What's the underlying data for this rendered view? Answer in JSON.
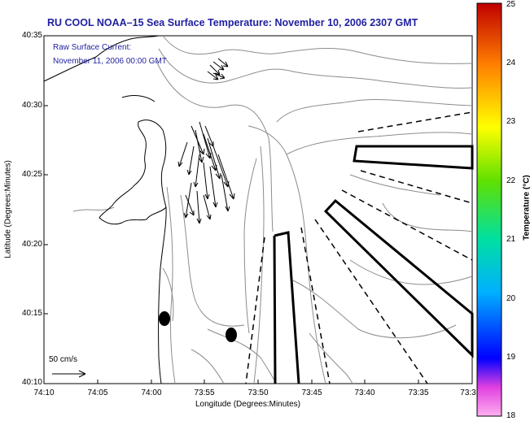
{
  "title": "RU COOL  NOAA–15  Sea Surface Temperature:  November 10, 2006 2307 GMT",
  "legend": {
    "line1": "Raw Surface Current:",
    "line2": "November 11, 2006 00:00 GMT",
    "scale_label": "50 cm/s"
  },
  "axes": {
    "xlabel": "Longitude (Degrees:Minutes)",
    "ylabel": "Latitude (Degrees:Minutes)",
    "xticks": [
      "74:10",
      "74:05",
      "74:00",
      "73:55",
      "73:50",
      "73:45",
      "73:40",
      "73:35",
      "73:3"
    ],
    "yticks": [
      "40:35",
      "40:30",
      "40:25",
      "40:20",
      "40:15",
      "40:10"
    ]
  },
  "colorbar": {
    "label": "Temperature (°C)",
    "ticks": [
      "25",
      "24",
      "23",
      "22",
      "21",
      "20",
      "19",
      "18"
    ]
  },
  "colors": {
    "title": "#1f1fa0",
    "contour": "#888888",
    "coast": "#000000"
  }
}
